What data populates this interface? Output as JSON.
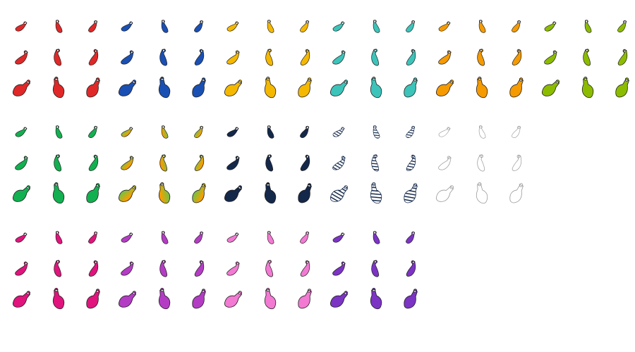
{
  "sprite_sheet": {
    "groups": [
      [
        {
          "color": "#e02828"
        },
        {
          "color": "#1a50b4"
        },
        {
          "color": "#f5b800"
        },
        {
          "color": "#3cc4ba"
        },
        {
          "color": "#f59a00"
        },
        {
          "color": "#8cbc00"
        }
      ],
      [
        {
          "color": "#12b050"
        },
        {
          "gradient": [
            "#9b4de0",
            "#7cc040",
            "#f5a000",
            "#e83020"
          ]
        },
        {
          "color": "#14284a"
        },
        {
          "stripes": [
            "#ffffff",
            "#14284a"
          ]
        },
        {
          "color": "#ffffff",
          "outline": "#999999"
        }
      ],
      [
        {
          "color": "#e0147c"
        },
        {
          "color": "#b43cc4"
        },
        {
          "color": "#f27ad2"
        },
        {
          "color": "#7c34c4"
        }
      ]
    ]
  }
}
